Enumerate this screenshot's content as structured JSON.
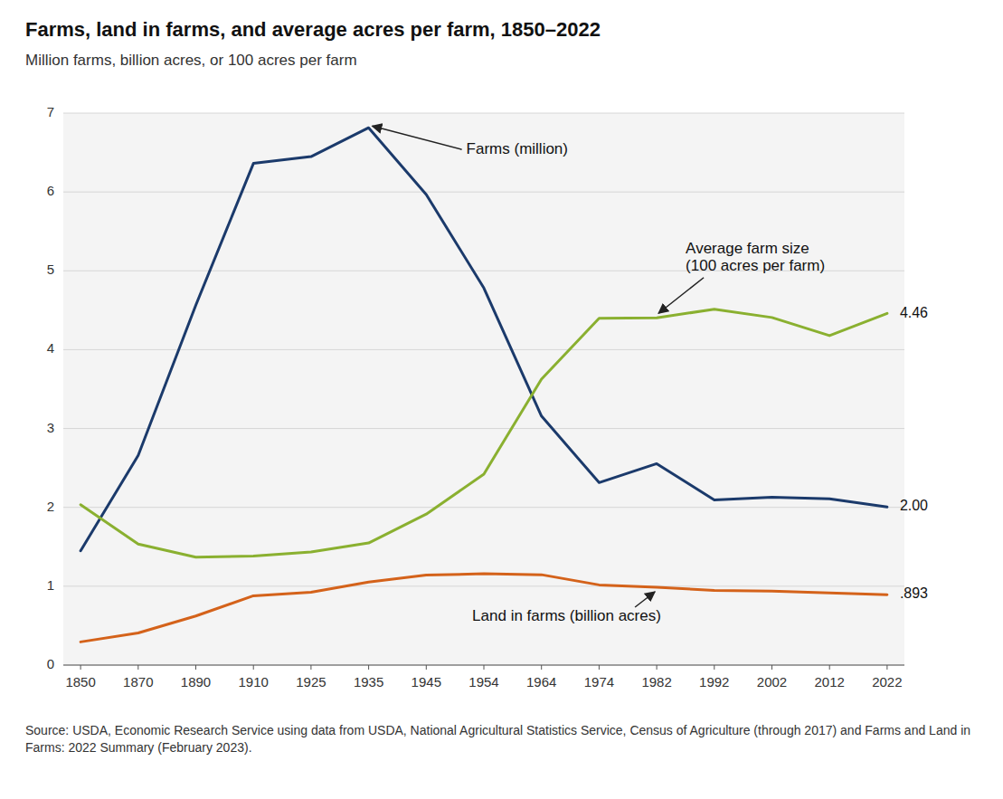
{
  "chart_data": {
    "type": "line",
    "title": "Farms, land in farms, and average acres per farm, 1850–2022",
    "subtitle": "Million farms, billion acres, or 100 acres per farm",
    "source": "Source: USDA, Economic Research Service using data from USDA, National Agricultural Statistics Service, Census of Agriculture (through 2017) and Farms and Land in Farms: 2022 Summary (February 2023).",
    "categories": [
      "1850",
      "1870",
      "1890",
      "1910",
      "1925",
      "1935",
      "1945",
      "1954",
      "1964",
      "1974",
      "1982",
      "1992",
      "2002",
      "2012",
      "2022"
    ],
    "series": [
      {
        "name": "Farms (million)",
        "color": "#1b3a6b",
        "values": [
          1.449,
          2.659,
          4.565,
          6.362,
          6.448,
          6.814,
          5.967,
          4.782,
          3.158,
          2.314,
          2.554,
          2.094,
          2.129,
          2.109,
          2.005
        ],
        "value_labels": [
          null,
          null,
          null,
          null,
          null,
          null,
          null,
          null,
          null,
          null,
          null,
          null,
          null,
          null,
          "2.00"
        ]
      },
      {
        "name": "Land in farms (billion acres)",
        "color": "#d4621a",
        "values": [
          0.294,
          0.408,
          0.623,
          0.879,
          0.924,
          1.054,
          1.142,
          1.158,
          1.146,
          1.017,
          0.987,
          0.946,
          0.938,
          0.915,
          0.893
        ],
        "value_labels": [
          null,
          null,
          null,
          null,
          null,
          null,
          null,
          null,
          null,
          null,
          null,
          null,
          null,
          null,
          ".893"
        ]
      },
      {
        "name": "Average farm size\n(100 acres per farm)",
        "color": "#8ab030",
        "values": [
          2.034,
          1.535,
          1.368,
          1.382,
          1.434,
          1.548,
          1.914,
          2.422,
          3.627,
          4.398,
          4.404,
          4.513,
          4.408,
          4.178,
          4.46
        ],
        "value_labels": [
          null,
          null,
          null,
          null,
          null,
          null,
          null,
          null,
          null,
          null,
          null,
          null,
          null,
          null,
          "4.46"
        ]
      }
    ],
    "ylim": [
      0,
      7
    ],
    "yticks": [
      0,
      1,
      2,
      3,
      4,
      5,
      6,
      7
    ],
    "grid": true
  }
}
